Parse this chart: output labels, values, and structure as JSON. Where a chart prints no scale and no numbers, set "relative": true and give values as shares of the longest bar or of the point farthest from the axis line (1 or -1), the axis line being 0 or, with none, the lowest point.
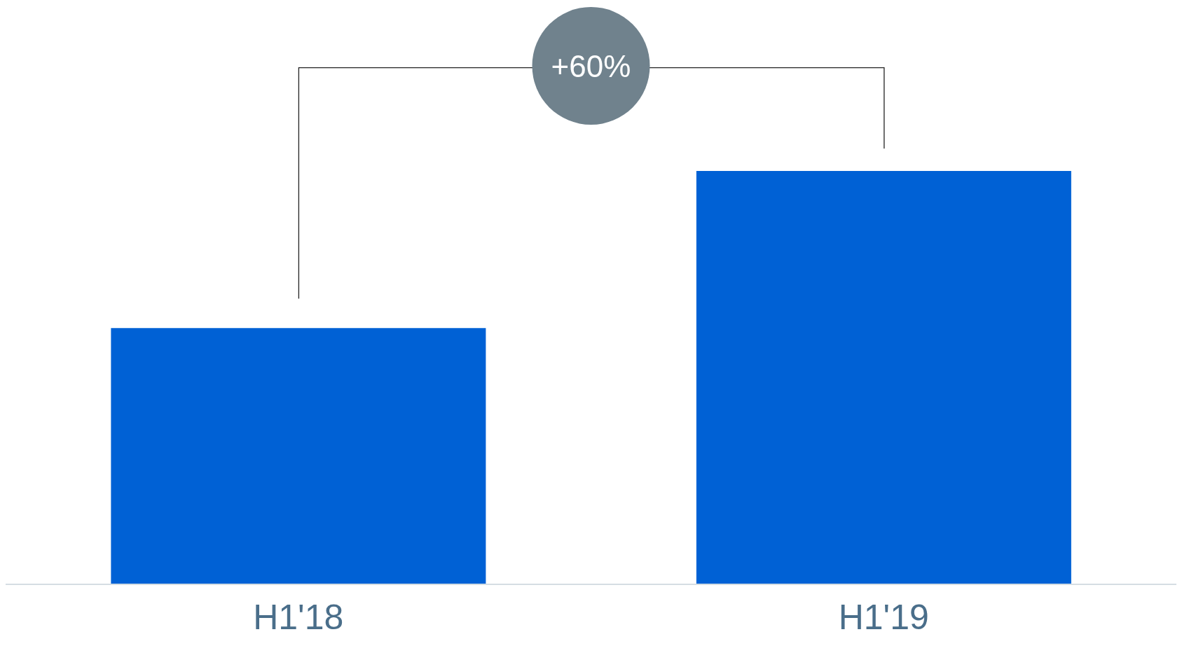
{
  "chart_data": {
    "type": "bar",
    "relative": true,
    "categories": [
      "H1'18",
      "H1'19"
    ],
    "values": [
      0.62,
      1
    ],
    "color": "#0061d5",
    "annotations": [
      "+60%"
    ]
  }
}
